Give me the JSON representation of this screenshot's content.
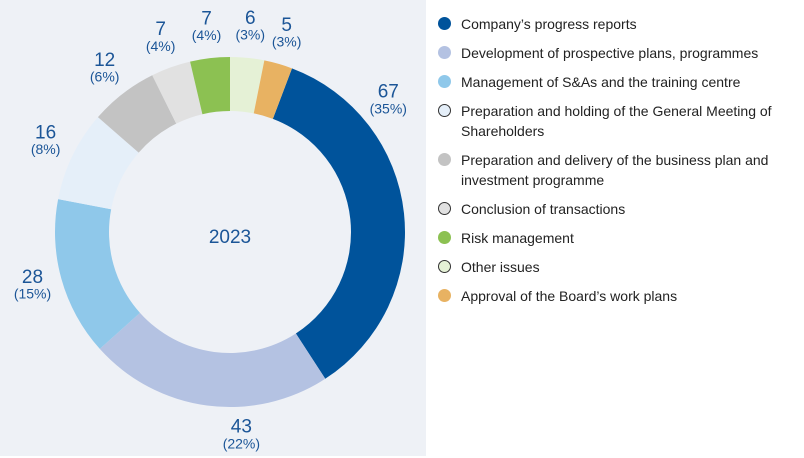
{
  "chart_data": {
    "type": "pie",
    "center_label": "2023",
    "categories": [
      "Company’s progress reports",
      "Development of prospective plans, programmes",
      "Management of S&As and the training centre",
      "Preparation and holding of the General Meeting of Shareholders",
      "Preparation and delivery of the business plan and investment programme",
      "Conclusion of transactions",
      "Risk management",
      "Other issues",
      "Approval of the Board’s work plans"
    ],
    "values": [
      67,
      43,
      28,
      16,
      12,
      7,
      7,
      6,
      5
    ],
    "percent_labels": [
      "(35%)",
      "(22%)",
      "(15%)",
      "(8%)",
      "(6%)",
      "(4%)",
      "(4%)",
      "(3%)",
      "(3%)"
    ],
    "colors": [
      "#00539b",
      "#b4c2e2",
      "#8fc8ea",
      "#e5eff9",
      "#c3c3c3",
      "#e1e1e1",
      "#8cc152",
      "#e5f1d6",
      "#e8b262"
    ]
  }
}
